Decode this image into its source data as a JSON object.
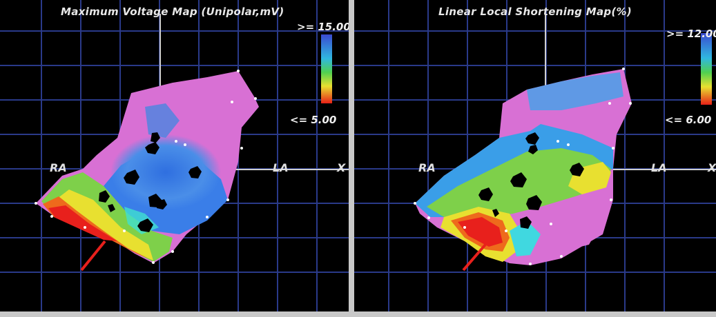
{
  "panels": {
    "left": {
      "title": "Maximum Voltage Map (Unipolar,mV)",
      "legend_max": ">= 15.00",
      "legend_min": "<= 5.00",
      "label_ra": "RA",
      "label_la": "LA",
      "label_x": "X"
    },
    "right": {
      "title": "Linear Local Shortening Map(%)",
      "legend_max": ">= 12.00",
      "legend_min": "<= 6.00",
      "label_ra": "RA",
      "label_la": "LA",
      "label_x": "X"
    }
  },
  "colors": {
    "background": "#000000",
    "grid": "#2a3a8a",
    "map_high": "#d86ed4",
    "map_blue": "#3a7ee8",
    "map_green": "#7ed04a",
    "map_yellow": "#e8e030",
    "map_low": "#e8201c",
    "divider": "#c8c8c8"
  }
}
